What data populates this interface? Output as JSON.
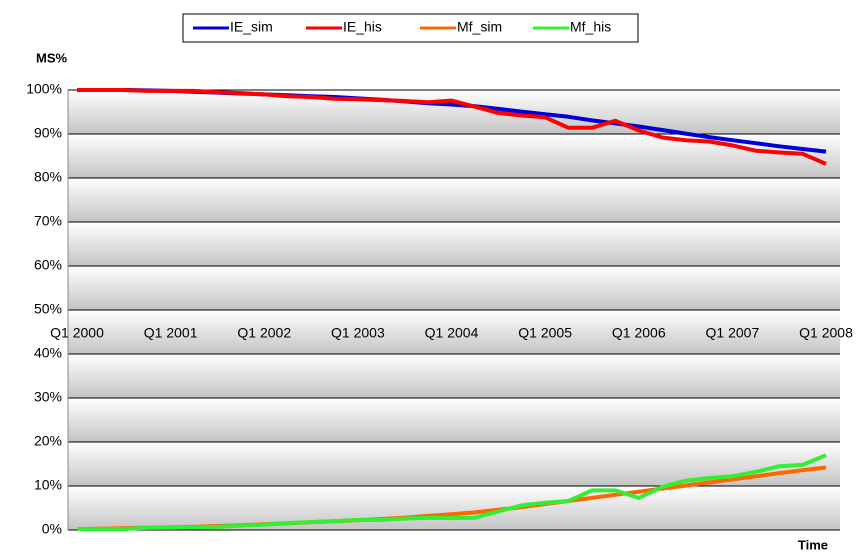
{
  "chart_data": {
    "type": "line",
    "y_label": "MS%",
    "x_label": "Time",
    "categories": [
      "Q1 2000",
      null,
      null,
      null,
      "Q1 2001",
      null,
      null,
      null,
      "Q1 2002",
      null,
      null,
      null,
      "Q1 2003",
      null,
      null,
      null,
      "Q1 2004",
      null,
      null,
      null,
      "Q1 2005",
      null,
      null,
      null,
      "Q1 2006",
      null,
      null,
      null,
      "Q1 2007",
      null,
      null,
      null,
      "Q1 2008"
    ],
    "series": [
      {
        "name": "IE_sim",
        "color": "#0000dd",
        "values": [
          100,
          100,
          100,
          99.9,
          99.8,
          99.6,
          99.4,
          99.2,
          99,
          98.8,
          98.6,
          98.4,
          98.1,
          97.8,
          97.4,
          97,
          96.7,
          96.3,
          95.7,
          95.1,
          94.5,
          93.9,
          93.1,
          92.4,
          91.7,
          90.9,
          90.1,
          89.3,
          88.6,
          87.9,
          87.2,
          86.6,
          86
        ]
      },
      {
        "name": "IE_his",
        "color": "#ff0000",
        "values": [
          100,
          100,
          100,
          99.8,
          99.8,
          99.8,
          99.5,
          99.3,
          99,
          98.6,
          98.4,
          98,
          97.9,
          97.7,
          97.5,
          97.2,
          97.6,
          96.2,
          94.8,
          94.2,
          93.8,
          91.4,
          91.4,
          93,
          90.8,
          89.2,
          88.6,
          88.3,
          87.4,
          86.2,
          85.8,
          85.5,
          83.2
        ]
      },
      {
        "name": "Mf_sim",
        "color": "#ff6600",
        "values": [
          0.2,
          0.3,
          0.4,
          0.5,
          0.6,
          0.7,
          0.9,
          1.1,
          1.3,
          1.5,
          1.8,
          2.0,
          2.2,
          2.5,
          2.8,
          3.2,
          3.6,
          4.0,
          4.6,
          5.2,
          5.9,
          6.6,
          7.3,
          8.0,
          8.7,
          9.4,
          10.1,
          10.8,
          11.5,
          12.2,
          12.9,
          13.6,
          14.2
        ]
      },
      {
        "name": "Mf_his",
        "color": "#33ee33",
        "values": [
          0.2,
          0.2,
          0.2,
          0.5,
          0.5,
          0.6,
          0.7,
          1.0,
          1.2,
          1.6,
          1.8,
          2.0,
          2.3,
          2.3,
          2.6,
          2.8,
          2.7,
          2.8,
          4.2,
          5.6,
          6.2,
          6.6,
          9.0,
          9.0,
          7.3,
          9.8,
          11.2,
          11.8,
          12.2,
          13.2,
          14.5,
          14.8,
          17.0
        ]
      }
    ],
    "ylim": [
      0,
      100
    ],
    "yticks": [
      {
        "value": 0,
        "label": "0%"
      },
      {
        "value": 10,
        "label": "10%"
      },
      {
        "value": 20,
        "label": "20%"
      },
      {
        "value": 30,
        "label": "30%"
      },
      {
        "value": 40,
        "label": "40%"
      },
      {
        "value": 50,
        "label": "50%"
      },
      {
        "value": 60,
        "label": "60%"
      },
      {
        "value": 70,
        "label": "70%"
      },
      {
        "value": 80,
        "label": "80%"
      },
      {
        "value": 90,
        "label": "90%"
      },
      {
        "value": 100,
        "label": "100%"
      }
    ],
    "x_axis_crosses": 50,
    "grid": true,
    "legend": "top"
  }
}
